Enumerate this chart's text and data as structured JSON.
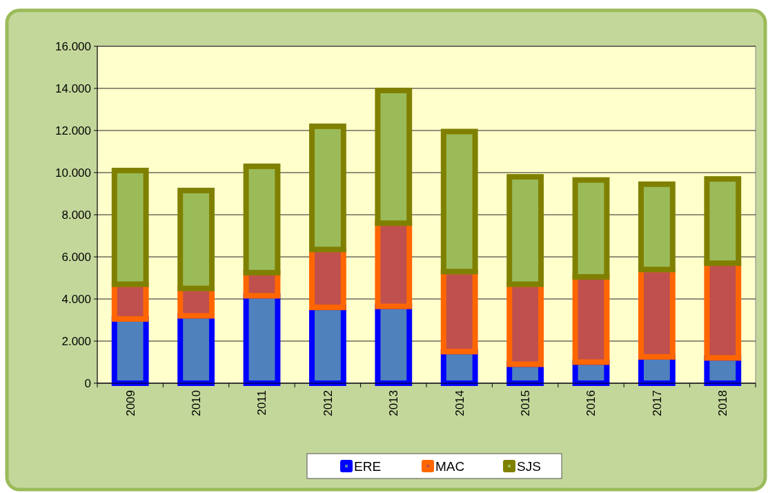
{
  "chart_data": {
    "type": "bar",
    "stacked": true,
    "categories": [
      "2009",
      "2010",
      "2011",
      "2012",
      "2013",
      "2014",
      "2015",
      "2016",
      "2017",
      "2018"
    ],
    "series": [
      {
        "name": "ERE",
        "color": "#4f81bd",
        "values": [
          3050,
          3200,
          4150,
          3600,
          3650,
          1500,
          900,
          1000,
          1250,
          1200
        ]
      },
      {
        "name": "MAC",
        "color": "#c0504d",
        "values": [
          1650,
          1300,
          1100,
          2750,
          3950,
          3800,
          3800,
          4050,
          4150,
          4500
        ]
      },
      {
        "name": "SJS",
        "color": "#9bbb59",
        "values": [
          5400,
          4650,
          5050,
          5850,
          6300,
          6650,
          5100,
          4600,
          4050,
          4000
        ]
      }
    ],
    "ylim": [
      0,
      16000
    ],
    "yticks": [
      {
        "value": 0,
        "label": "0"
      },
      {
        "value": 2000,
        "label": "2.000"
      },
      {
        "value": 4000,
        "label": "4.000"
      },
      {
        "value": 6000,
        "label": "6.000"
      },
      {
        "value": 8000,
        "label": "8.000"
      },
      {
        "value": 10000,
        "label": "10.000"
      },
      {
        "value": 12000,
        "label": "12.000"
      },
      {
        "value": 14000,
        "label": "14.000"
      },
      {
        "value": 16000,
        "label": "16.000"
      }
    ],
    "grid": "y",
    "legend": "bottom"
  }
}
